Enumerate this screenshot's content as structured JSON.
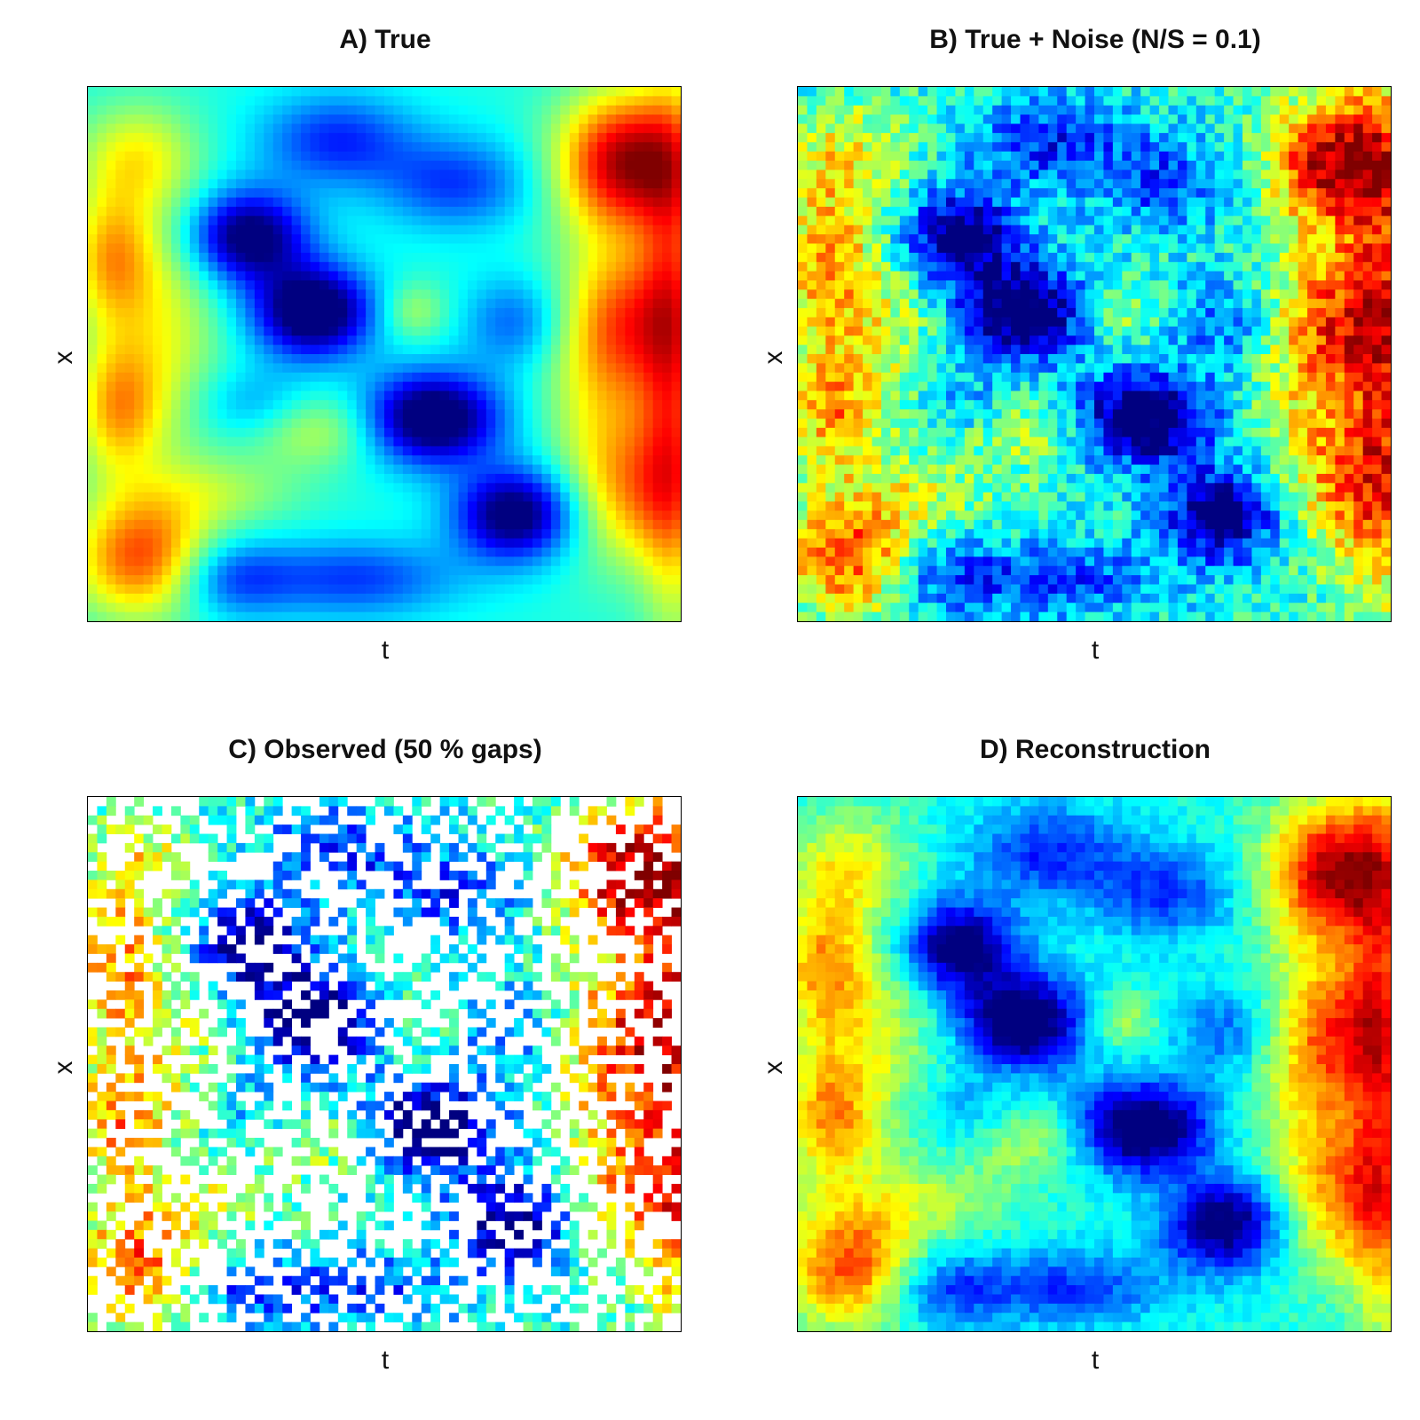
{
  "chart_data": [
    {
      "type": "heatmap",
      "panel": "A",
      "title": "A) True",
      "xlabel": "t",
      "ylabel": "x",
      "grid": false,
      "colormap": "jet",
      "noise_ratio": 0,
      "gap_fraction": 0,
      "nx": 64,
      "ny": 58
    },
    {
      "type": "heatmap",
      "panel": "B",
      "title": "B) True + Noise (N/S = 0.1)",
      "xlabel": "t",
      "ylabel": "x",
      "grid": false,
      "colormap": "jet",
      "noise_ratio": 0.1,
      "gap_fraction": 0,
      "nx": 64,
      "ny": 58
    },
    {
      "type": "heatmap",
      "panel": "C",
      "title": "C) Observed (50 % gaps)",
      "xlabel": "t",
      "ylabel": "x",
      "grid": false,
      "colormap": "jet",
      "noise_ratio": 0.1,
      "gap_fraction": 0.5,
      "nx": 64,
      "ny": 58
    },
    {
      "type": "heatmap",
      "panel": "D",
      "title": "D) Reconstruction",
      "xlabel": "t",
      "ylabel": "x",
      "grid": false,
      "colormap": "jet",
      "noise_ratio": 0.04,
      "gap_fraction": 0,
      "nx": 64,
      "ny": 58
    }
  ]
}
